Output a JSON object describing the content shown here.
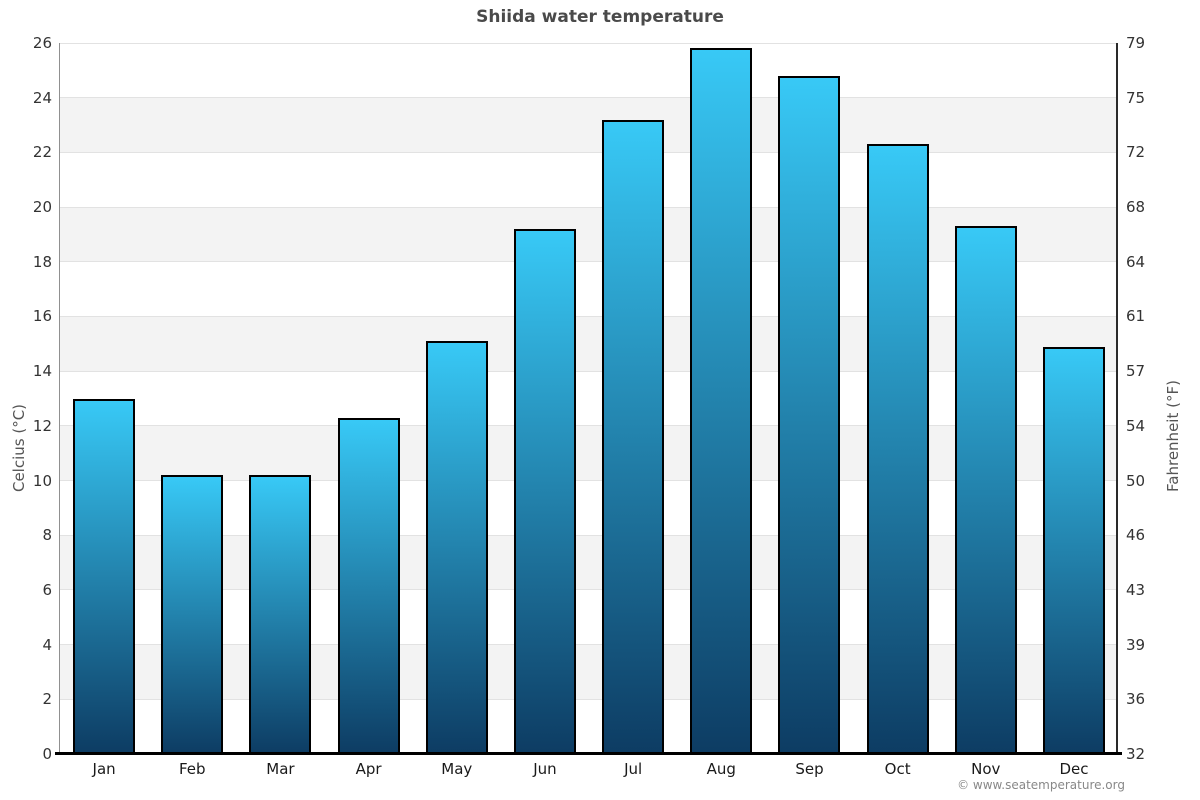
{
  "chart_data": {
    "type": "bar",
    "title": "Shiida water temperature",
    "categories": [
      "Jan",
      "Feb",
      "Mar",
      "Apr",
      "May",
      "Jun",
      "Jul",
      "Aug",
      "Sep",
      "Oct",
      "Nov",
      "Dec"
    ],
    "values": [
      13.0,
      10.2,
      10.2,
      12.3,
      15.1,
      19.2,
      23.2,
      25.8,
      24.8,
      22.3,
      19.3,
      14.9
    ],
    "ylabel_left": "Celcius (°C)",
    "ylabel_right": "Fahrenheit (°F)",
    "y_ticks_left": [
      26,
      24,
      22,
      20,
      18,
      16,
      14,
      12,
      10,
      8,
      6,
      4,
      2,
      0
    ],
    "y_ticks_right": [
      79,
      75,
      72,
      68,
      64,
      61,
      57,
      54,
      50,
      46,
      43,
      39,
      36,
      32
    ],
    "ylim": [
      0,
      26
    ],
    "grid": "horizontal gridlines with alternating shaded bands every 2°C",
    "legend": "none",
    "attribution": "© www.seatemperature.org",
    "colors": {
      "bar_top": "#38c9f6",
      "bar_bottom": "#0d3c63",
      "bar_border": "#000000",
      "band": "#f3f3f3",
      "gridline": "#e2e2e2",
      "title_text": "#4a4a4a",
      "tick_text": "#333333",
      "axis_title_text": "#555555",
      "attribution_text": "#888888"
    }
  }
}
